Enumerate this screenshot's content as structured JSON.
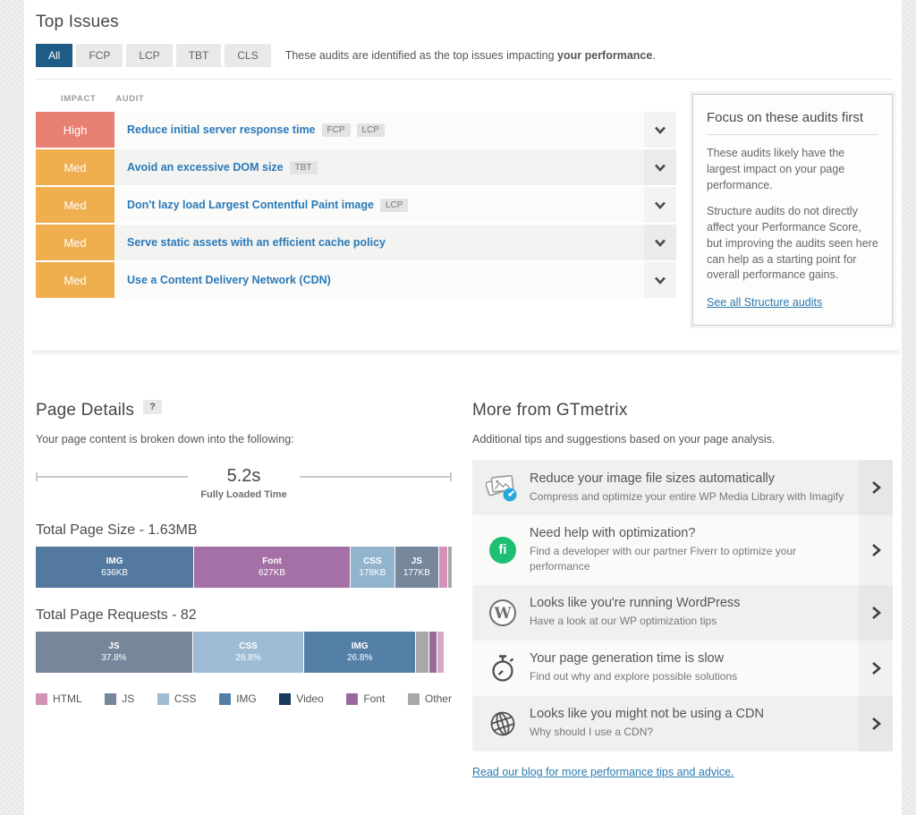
{
  "colors": {
    "accent_blue": "#1e5b85",
    "link_blue": "#2a7ab0",
    "impact_high": "#e87f73",
    "impact_med": "#efaf4f"
  },
  "top_issues": {
    "title": "Top Issues",
    "tabs": [
      {
        "label": "All",
        "active": true
      },
      {
        "label": "FCP",
        "active": false
      },
      {
        "label": "LCP",
        "active": false
      },
      {
        "label": "TBT",
        "active": false
      },
      {
        "label": "CLS",
        "active": false
      }
    ],
    "description_prefix": "These audits are identified as the top issues impacting ",
    "description_bold": "your performance",
    "description_suffix": ".",
    "columns": {
      "impact": "IMPACT",
      "audit": "AUDIT"
    },
    "audits": [
      {
        "impact": "High",
        "impact_color": "#e87f73",
        "title": "Reduce initial server response time",
        "tags": [
          "FCP",
          "LCP"
        ]
      },
      {
        "impact": "Med",
        "impact_color": "#efaf4f",
        "title": "Avoid an excessive DOM size",
        "tags": [
          "TBT"
        ]
      },
      {
        "impact": "Med",
        "impact_color": "#efaf4f",
        "title": "Don't lazy load Largest Contentful Paint image",
        "tags": [
          "LCP"
        ]
      },
      {
        "impact": "Med",
        "impact_color": "#efaf4f",
        "title": "Serve static assets with an efficient cache policy",
        "tags": []
      },
      {
        "impact": "Med",
        "impact_color": "#efaf4f",
        "title": "Use a Content Delivery Network (CDN)",
        "tags": []
      }
    ],
    "focus_panel": {
      "title": "Focus on these audits first",
      "paragraphs": [
        "These audits likely have the largest impact on your page performance.",
        "Structure audits do not directly affect your Performance Score, but improving the audits seen here can help as a starting point for overall performance gains."
      ],
      "link": "See all Structure audits"
    }
  },
  "page_details": {
    "title": "Page Details",
    "help_badge": "?",
    "subtitle": "Your page content is broken down into the following:",
    "fully_loaded": {
      "value": "5.2s",
      "label": "Fully Loaded Time"
    },
    "size_chart": {
      "type": "stacked-bar",
      "title": "Total Page Size - 1.63MB",
      "segments": [
        {
          "name": "IMG",
          "value": "636KB",
          "pct": 38.1,
          "color": "#53799f",
          "show_label": true
        },
        {
          "name": "Font",
          "value": "627KB",
          "pct": 37.6,
          "color": "#a470a5",
          "show_label": true
        },
        {
          "name": "CSS",
          "value": "178KB",
          "pct": 10.7,
          "color": "#92b3cc",
          "show_label": true
        },
        {
          "name": "JS",
          "value": "177KB",
          "pct": 10.6,
          "color": "#76879b",
          "show_label": true
        },
        {
          "name": "HTML",
          "value": "",
          "pct": 2.1,
          "color": "#d492b6",
          "show_label": false
        },
        {
          "name": "Other",
          "value": "",
          "pct": 0.9,
          "color": "#a8a8a6",
          "show_label": false
        }
      ]
    },
    "requests_chart": {
      "type": "stacked-bar",
      "title": "Total Page Requests - 82",
      "segments": [
        {
          "name": "JS",
          "value": "37.8%",
          "pct": 37.8,
          "color": "#76879b",
          "show_label": true
        },
        {
          "name": "CSS",
          "value": "26.8%",
          "pct": 26.8,
          "color": "#9dbcd4",
          "show_label": true
        },
        {
          "name": "IMG",
          "value": "26.8%",
          "pct": 26.8,
          "color": "#5480a8",
          "show_label": true
        },
        {
          "name": "Other",
          "value": "",
          "pct": 3.2,
          "color": "#a8a8a6",
          "show_label": false
        },
        {
          "name": "Font",
          "value": "",
          "pct": 1.9,
          "color": "#9a6b9d",
          "show_label": false
        },
        {
          "name": "HTML",
          "value": "",
          "pct": 1.6,
          "color": "#d9a8c7",
          "show_label": false
        }
      ]
    },
    "legend": [
      {
        "label": "HTML",
        "color": "#d492b6"
      },
      {
        "label": "JS",
        "color": "#76879b"
      },
      {
        "label": "CSS",
        "color": "#9dbcd4"
      },
      {
        "label": "IMG",
        "color": "#5480a8"
      },
      {
        "label": "Video",
        "color": "#17395c"
      },
      {
        "label": "Font",
        "color": "#9a689c"
      },
      {
        "label": "Other",
        "color": "#a8a8a6"
      }
    ]
  },
  "more_from": {
    "title": "More from GTmetrix",
    "subtitle": "Additional tips and suggestions based on your page analysis.",
    "cards": [
      {
        "icon": "imagify-icon",
        "title": "Reduce your image file sizes automatically",
        "subtitle": "Compress and optimize your entire WP Media Library with Imagify"
      },
      {
        "icon": "fiverr-icon",
        "icon_text": "fi",
        "title": "Need help with optimization?",
        "subtitle": "Find a developer with our partner Fiverr to optimize your performance"
      },
      {
        "icon": "wordpress-icon",
        "icon_text": "W",
        "title": "Looks like you're running WordPress",
        "subtitle": "Have a look at our WP optimization tips"
      },
      {
        "icon": "stopwatch-icon",
        "title": "Your page generation time is slow",
        "subtitle": "Find out why and explore possible solutions"
      },
      {
        "icon": "globe-icon",
        "title": "Looks like you might not be using a CDN",
        "subtitle": "Why should I use a CDN?"
      }
    ],
    "footer_link": "Read our blog for more performance tips and advice."
  }
}
